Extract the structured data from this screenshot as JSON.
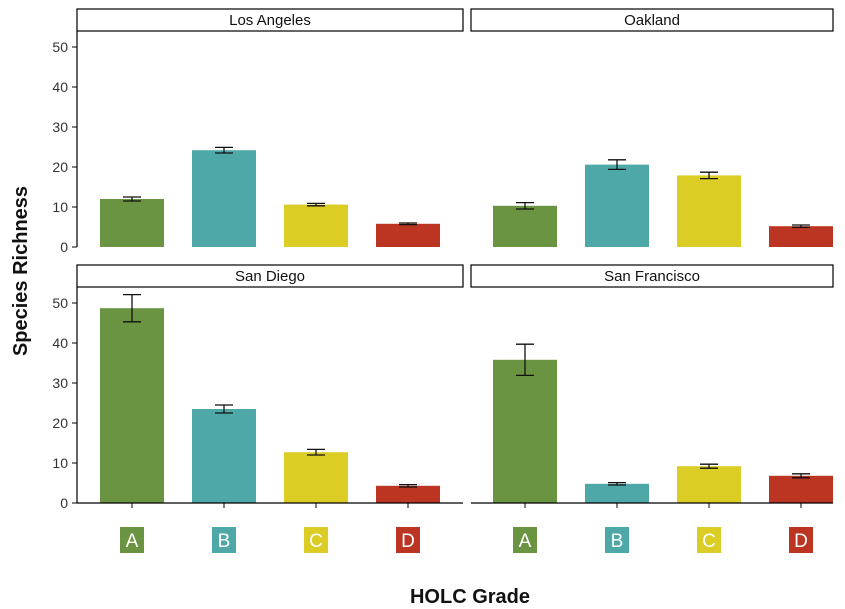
{
  "chart_data": {
    "type": "bar",
    "categories": [
      "A",
      "B",
      "C",
      "D"
    ],
    "category_colors": {
      "A": "#6a9441",
      "B": "#4ea8a7",
      "C": "#dccd24",
      "D": "#bc3522"
    },
    "xlabel": "HOLC Grade",
    "ylabel": "Species Richness",
    "ylim": [
      0,
      52
    ],
    "yticks": [
      0,
      10,
      20,
      30,
      40,
      50
    ],
    "grid": false,
    "legend": "none",
    "facets": [
      {
        "name": "Los Angeles",
        "values": [
          12.0,
          24.2,
          10.6,
          5.8
        ],
        "errors": [
          0.5,
          0.7,
          0.3,
          0.2
        ]
      },
      {
        "name": "Oakland",
        "values": [
          10.3,
          20.6,
          17.9,
          5.2
        ],
        "errors": [
          0.8,
          1.2,
          0.8,
          0.3
        ]
      },
      {
        "name": "San Diego",
        "values": [
          48.7,
          23.5,
          12.7,
          4.3
        ],
        "errors": [
          3.4,
          1.0,
          0.7,
          0.3
        ]
      },
      {
        "name": "San Francisco",
        "values": [
          35.8,
          4.8,
          9.2,
          6.8
        ],
        "errors": [
          3.9,
          0.3,
          0.5,
          0.5
        ]
      }
    ]
  }
}
